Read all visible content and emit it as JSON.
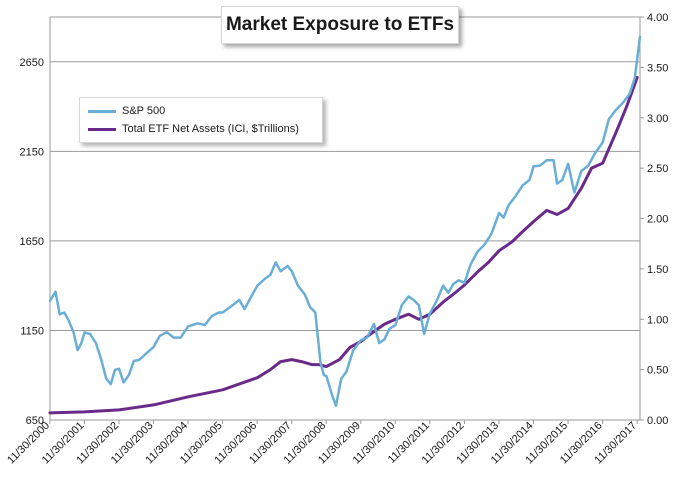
{
  "chart_data": {
    "type": "line",
    "title": "Market Exposure to ETFs",
    "legend_position": "top-left",
    "grid": "horizontal",
    "y_left": {
      "ylim": [
        650,
        2900
      ],
      "ticks": [
        "2650",
        "2150",
        "1650",
        "1150",
        "650"
      ],
      "tick_values": [
        2650,
        2150,
        1650,
        1150,
        650
      ]
    },
    "y_right": {
      "ylim": [
        0,
        4.0
      ],
      "ticks": [
        "4.00",
        "3.50",
        "3.00",
        "2.50",
        "2.00",
        "1.50",
        "1.00",
        "0.50",
        "0.00"
      ],
      "tick_values": [
        4.0,
        3.5,
        3.0,
        2.5,
        2.0,
        1.5,
        1.0,
        0.5,
        0.0
      ]
    },
    "x_ticks": [
      "11/30/2000",
      "11/30/2001",
      "11/30/2002",
      "11/30/2003",
      "11/30/2004",
      "11/30/2005",
      "11/30/2006",
      "11/30/2007",
      "11/30/2008",
      "11/30/2009",
      "11/30/2010",
      "11/30/2011",
      "11/30/2012",
      "11/30/2013",
      "11/30/2014",
      "11/30/2015",
      "11/30/2016",
      "11/30/2017"
    ],
    "x_range": [
      2000.92,
      2018.0
    ],
    "series": [
      {
        "name": "S&P 500",
        "axis": "left",
        "color": "#6aaed6",
        "x": [
          2000.92,
          2001.08,
          2001.2,
          2001.33,
          2001.45,
          2001.6,
          2001.72,
          2001.83,
          2001.92,
          2002.08,
          2002.25,
          2002.4,
          2002.55,
          2002.68,
          2002.8,
          2002.92,
          2003.05,
          2003.2,
          2003.35,
          2003.5,
          2003.7,
          2003.92,
          2004.1,
          2004.3,
          2004.5,
          2004.7,
          2004.92,
          2005.2,
          2005.4,
          2005.6,
          2005.8,
          2005.92,
          2006.2,
          2006.4,
          2006.55,
          2006.75,
          2006.92,
          2007.15,
          2007.3,
          2007.45,
          2007.6,
          2007.8,
          2007.92,
          2008.1,
          2008.3,
          2008.45,
          2008.6,
          2008.75,
          2008.85,
          2008.92,
          2009.1,
          2009.2,
          2009.35,
          2009.5,
          2009.7,
          2009.92,
          2010.1,
          2010.3,
          2010.45,
          2010.6,
          2010.75,
          2010.92,
          2011.1,
          2011.3,
          2011.45,
          2011.6,
          2011.75,
          2011.92,
          2012.1,
          2012.3,
          2012.45,
          2012.6,
          2012.75,
          2012.92,
          2013.1,
          2013.3,
          2013.5,
          2013.7,
          2013.92,
          2014.05,
          2014.2,
          2014.4,
          2014.6,
          2014.8,
          2014.92,
          2015.1,
          2015.3,
          2015.5,
          2015.6,
          2015.75,
          2015.92,
          2016.1,
          2016.3,
          2016.5,
          2016.7,
          2016.92,
          2017.1,
          2017.3,
          2017.5,
          2017.7,
          2017.85,
          2018.0
        ],
        "values": [
          1315,
          1366,
          1240,
          1250,
          1210,
          1140,
          1040,
          1080,
          1139,
          1130,
          1080,
          990,
          880,
          850,
          930,
          936,
          860,
          900,
          980,
          985,
          1020,
          1058,
          1120,
          1140,
          1110,
          1110,
          1173,
          1190,
          1180,
          1230,
          1250,
          1250,
          1290,
          1320,
          1270,
          1340,
          1400,
          1440,
          1460,
          1530,
          1480,
          1510,
          1481,
          1400,
          1350,
          1280,
          1250,
          970,
          900,
          896,
          780,
          730,
          880,
          920,
          1040,
          1096,
          1110,
          1186,
          1080,
          1100,
          1160,
          1180,
          1290,
          1340,
          1320,
          1290,
          1130,
          1247,
          1310,
          1400,
          1360,
          1410,
          1430,
          1416,
          1520,
          1590,
          1630,
          1690,
          1806,
          1780,
          1850,
          1900,
          1960,
          1990,
          2067,
          2070,
          2100,
          2100,
          1970,
          1990,
          2080,
          1920,
          2040,
          2070,
          2140,
          2200,
          2330,
          2380,
          2420,
          2470,
          2560,
          2790
        ]
      },
      {
        "name": "Total ETF Net Assets (ICI, $Trillions)",
        "axis": "right",
        "color": "#6a2a8a",
        "x": [
          2000.92,
          2001.92,
          2002.92,
          2003.92,
          2004.92,
          2005.92,
          2006.92,
          2007.3,
          2007.6,
          2007.92,
          2008.2,
          2008.5,
          2008.7,
          2008.92,
          2009.3,
          2009.6,
          2009.92,
          2010.3,
          2010.6,
          2010.92,
          2011.3,
          2011.6,
          2011.92,
          2012.3,
          2012.6,
          2012.92,
          2013.3,
          2013.6,
          2013.92,
          2014.3,
          2014.6,
          2014.92,
          2015.3,
          2015.6,
          2015.92,
          2016.3,
          2016.6,
          2016.92,
          2017.3,
          2017.6,
          2017.92
        ],
        "values": [
          0.07,
          0.08,
          0.1,
          0.15,
          0.23,
          0.3,
          0.42,
          0.5,
          0.58,
          0.6,
          0.58,
          0.55,
          0.55,
          0.53,
          0.6,
          0.72,
          0.78,
          0.88,
          0.95,
          1.0,
          1.05,
          1.0,
          1.05,
          1.17,
          1.25,
          1.34,
          1.47,
          1.56,
          1.68,
          1.77,
          1.87,
          1.97,
          2.08,
          2.04,
          2.1,
          2.3,
          2.5,
          2.55,
          2.85,
          3.1,
          3.4
        ]
      }
    ]
  }
}
